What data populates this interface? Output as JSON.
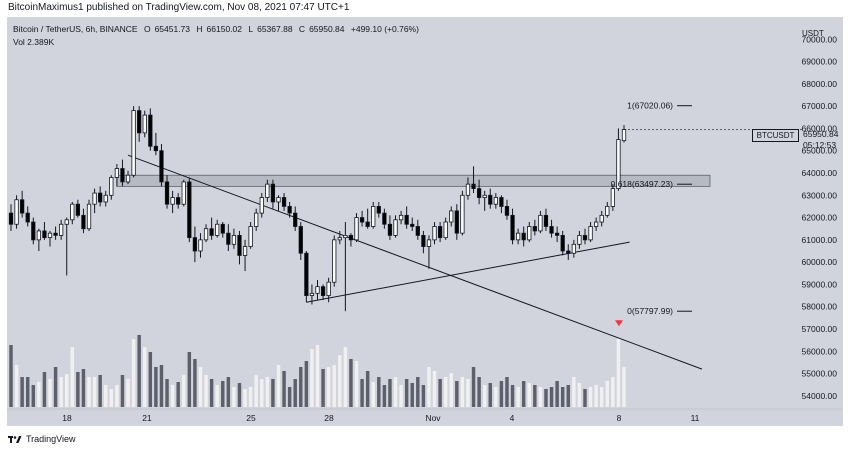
{
  "header": {
    "publish_text": "BitcoinMaximus1 published on TradingView.com, Nov 08, 2021 07:47 UTC+1"
  },
  "legend": {
    "title": "Bitcoin / TetherUS, 6h, BINANCE",
    "o": "65451.73",
    "h": "66150.02",
    "l": "65367.88",
    "c": "65950.84",
    "change": "+499.10 (+0.76%)",
    "vol": "Vol 2.389K"
  },
  "price_axis": {
    "currency": "USDT",
    "ticks": [
      "70000.00",
      "69000.00",
      "68000.00",
      "67000.00",
      "66000.00",
      "65000.00",
      "64000.00",
      "63000.00",
      "62000.00",
      "61000.00",
      "60000.00",
      "59000.00",
      "58000.00",
      "57000.00",
      "56000.00",
      "55000.00",
      "54000.00"
    ]
  },
  "price_badge": {
    "symbol": "BTCUSDT",
    "last": "65950.84",
    "countdown": "05:12:53"
  },
  "fib": [
    {
      "label": "1(67020.06)",
      "price": 67020.06
    },
    {
      "label": "0.618(63497.23)",
      "price": 63497.23
    },
    {
      "label": "0(57797.99)",
      "price": 57797.99
    }
  ],
  "footer": {
    "brand": "TradingView"
  },
  "colors": {
    "background": "#d1d4dc",
    "bull_fill": "#ffffff",
    "bear_fill": "#000000",
    "line": "#131722",
    "zone": "#b2b5be",
    "vol_bull": "#f0f0f0",
    "vol_bear": "#5d606b",
    "arrow": "#f23645"
  },
  "chart_data": {
    "type": "candlestick",
    "title": "Bitcoin / TetherUS, 6h, BINANCE",
    "x_ticks": [
      "18",
      "21",
      "25",
      "28",
      "Nov",
      "4",
      "8",
      "11"
    ],
    "y_range": [
      53500,
      71000
    ],
    "candles": [
      {
        "o": 62200,
        "h": 62600,
        "l": 61400,
        "c": 61700
      },
      {
        "o": 61700,
        "h": 63000,
        "l": 61500,
        "c": 62800
      },
      {
        "o": 62800,
        "h": 63200,
        "l": 62000,
        "c": 62200
      },
      {
        "o": 62200,
        "h": 62500,
        "l": 61600,
        "c": 61800
      },
      {
        "o": 61800,
        "h": 62000,
        "l": 60800,
        "c": 61000
      },
      {
        "o": 61000,
        "h": 61500,
        "l": 60500,
        "c": 61400
      },
      {
        "o": 61400,
        "h": 61800,
        "l": 61000,
        "c": 61100
      },
      {
        "o": 61100,
        "h": 61400,
        "l": 60700,
        "c": 61300
      },
      {
        "o": 61300,
        "h": 61600,
        "l": 61000,
        "c": 61200
      },
      {
        "o": 61200,
        "h": 61900,
        "l": 61000,
        "c": 61700
      },
      {
        "o": 61700,
        "h": 62000,
        "l": 59400,
        "c": 61900
      },
      {
        "o": 61900,
        "h": 62700,
        "l": 61700,
        "c": 62600
      },
      {
        "o": 62600,
        "h": 62800,
        "l": 62000,
        "c": 62100
      },
      {
        "o": 62100,
        "h": 62400,
        "l": 61300,
        "c": 61500
      },
      {
        "o": 61500,
        "h": 62800,
        "l": 61400,
        "c": 62600
      },
      {
        "o": 62600,
        "h": 63300,
        "l": 62200,
        "c": 63100
      },
      {
        "o": 63100,
        "h": 63400,
        "l": 62500,
        "c": 62700
      },
      {
        "o": 62700,
        "h": 63200,
        "l": 62500,
        "c": 63000
      },
      {
        "o": 63000,
        "h": 63900,
        "l": 62800,
        "c": 63800
      },
      {
        "o": 63800,
        "h": 64400,
        "l": 63400,
        "c": 64200
      },
      {
        "o": 64200,
        "h": 64600,
        "l": 63400,
        "c": 63600
      },
      {
        "o": 63600,
        "h": 64100,
        "l": 63500,
        "c": 63900
      },
      {
        "o": 63900,
        "h": 67000,
        "l": 63800,
        "c": 66800
      },
      {
        "o": 66800,
        "h": 67000,
        "l": 65400,
        "c": 65800
      },
      {
        "o": 65800,
        "h": 66800,
        "l": 65600,
        "c": 66600
      },
      {
        "o": 66600,
        "h": 66900,
        "l": 65000,
        "c": 65200
      },
      {
        "o": 65200,
        "h": 65800,
        "l": 64800,
        "c": 65000
      },
      {
        "o": 65000,
        "h": 65300,
        "l": 63400,
        "c": 63600
      },
      {
        "o": 63600,
        "h": 63900,
        "l": 62400,
        "c": 62600
      },
      {
        "o": 62600,
        "h": 63200,
        "l": 62200,
        "c": 62900
      },
      {
        "o": 62900,
        "h": 63100,
        "l": 62400,
        "c": 62600
      },
      {
        "o": 62600,
        "h": 63700,
        "l": 62500,
        "c": 63600
      },
      {
        "o": 63600,
        "h": 63800,
        "l": 60900,
        "c": 61100
      },
      {
        "o": 61100,
        "h": 61600,
        "l": 60000,
        "c": 60500
      },
      {
        "o": 60500,
        "h": 61300,
        "l": 60200,
        "c": 61000
      },
      {
        "o": 61000,
        "h": 61700,
        "l": 60900,
        "c": 61500
      },
      {
        "o": 61500,
        "h": 62000,
        "l": 61000,
        "c": 61200
      },
      {
        "o": 61200,
        "h": 61900,
        "l": 61100,
        "c": 61700
      },
      {
        "o": 61700,
        "h": 61800,
        "l": 61100,
        "c": 61300
      },
      {
        "o": 61300,
        "h": 61700,
        "l": 60500,
        "c": 60800
      },
      {
        "o": 60800,
        "h": 61500,
        "l": 60600,
        "c": 61200
      },
      {
        "o": 61200,
        "h": 61400,
        "l": 59900,
        "c": 60300
      },
      {
        "o": 60300,
        "h": 61000,
        "l": 59600,
        "c": 60700
      },
      {
        "o": 60700,
        "h": 61800,
        "l": 60600,
        "c": 61600
      },
      {
        "o": 61600,
        "h": 62400,
        "l": 61400,
        "c": 62200
      },
      {
        "o": 62200,
        "h": 63100,
        "l": 62000,
        "c": 62900
      },
      {
        "o": 62900,
        "h": 63700,
        "l": 62700,
        "c": 63500
      },
      {
        "o": 63500,
        "h": 63700,
        "l": 62400,
        "c": 62700
      },
      {
        "o": 62700,
        "h": 63000,
        "l": 62300,
        "c": 62900
      },
      {
        "o": 62900,
        "h": 63100,
        "l": 62300,
        "c": 62500
      },
      {
        "o": 62500,
        "h": 62700,
        "l": 62000,
        "c": 62200
      },
      {
        "o": 62200,
        "h": 62500,
        "l": 61400,
        "c": 61600
      },
      {
        "o": 61600,
        "h": 61800,
        "l": 60100,
        "c": 60400
      },
      {
        "o": 60400,
        "h": 60500,
        "l": 58200,
        "c": 58500
      },
      {
        "o": 58500,
        "h": 59000,
        "l": 58100,
        "c": 58600
      },
      {
        "o": 58600,
        "h": 59200,
        "l": 58300,
        "c": 58900
      },
      {
        "o": 58900,
        "h": 59000,
        "l": 58300,
        "c": 58500
      },
      {
        "o": 58500,
        "h": 59300,
        "l": 58200,
        "c": 59100
      },
      {
        "o": 59100,
        "h": 61200,
        "l": 58900,
        "c": 61000
      },
      {
        "o": 61000,
        "h": 61400,
        "l": 60800,
        "c": 61100
      },
      {
        "o": 61100,
        "h": 61800,
        "l": 57800,
        "c": 61200
      },
      {
        "o": 61200,
        "h": 61300,
        "l": 60700,
        "c": 61000
      },
      {
        "o": 61000,
        "h": 62200,
        "l": 60900,
        "c": 62000
      },
      {
        "o": 62000,
        "h": 62300,
        "l": 61600,
        "c": 61800
      },
      {
        "o": 61800,
        "h": 62400,
        "l": 61500,
        "c": 61600
      },
      {
        "o": 61600,
        "h": 62700,
        "l": 61500,
        "c": 62500
      },
      {
        "o": 62500,
        "h": 62700,
        "l": 62000,
        "c": 62200
      },
      {
        "o": 62200,
        "h": 62400,
        "l": 61500,
        "c": 61700
      },
      {
        "o": 61700,
        "h": 62100,
        "l": 61000,
        "c": 61200
      },
      {
        "o": 61200,
        "h": 62100,
        "l": 61100,
        "c": 61900
      },
      {
        "o": 61900,
        "h": 62300,
        "l": 61700,
        "c": 62100
      },
      {
        "o": 62100,
        "h": 62500,
        "l": 61500,
        "c": 61700
      },
      {
        "o": 61700,
        "h": 62000,
        "l": 61400,
        "c": 61600
      },
      {
        "o": 61600,
        "h": 61900,
        "l": 61000,
        "c": 61200
      },
      {
        "o": 61200,
        "h": 61400,
        "l": 60400,
        "c": 60700
      },
      {
        "o": 60700,
        "h": 61200,
        "l": 59700,
        "c": 61000
      },
      {
        "o": 61000,
        "h": 61800,
        "l": 60800,
        "c": 61600
      },
      {
        "o": 61600,
        "h": 61800,
        "l": 60900,
        "c": 61100
      },
      {
        "o": 61100,
        "h": 62000,
        "l": 61000,
        "c": 61800
      },
      {
        "o": 61800,
        "h": 62500,
        "l": 61600,
        "c": 62300
      },
      {
        "o": 62300,
        "h": 62600,
        "l": 61000,
        "c": 61300
      },
      {
        "o": 61300,
        "h": 63200,
        "l": 61200,
        "c": 63000
      },
      {
        "o": 63000,
        "h": 63800,
        "l": 62800,
        "c": 63500
      },
      {
        "o": 63500,
        "h": 64300,
        "l": 63100,
        "c": 63300
      },
      {
        "o": 63300,
        "h": 63700,
        "l": 62600,
        "c": 62900
      },
      {
        "o": 62900,
        "h": 63200,
        "l": 62300,
        "c": 63000
      },
      {
        "o": 63000,
        "h": 63300,
        "l": 62400,
        "c": 62600
      },
      {
        "o": 62600,
        "h": 63100,
        "l": 62400,
        "c": 62900
      },
      {
        "o": 62900,
        "h": 63000,
        "l": 62200,
        "c": 62500
      },
      {
        "o": 62500,
        "h": 62800,
        "l": 61900,
        "c": 62100
      },
      {
        "o": 62100,
        "h": 62400,
        "l": 60800,
        "c": 61000
      },
      {
        "o": 61000,
        "h": 61500,
        "l": 60800,
        "c": 61300
      },
      {
        "o": 61300,
        "h": 61600,
        "l": 60700,
        "c": 61000
      },
      {
        "o": 61000,
        "h": 61800,
        "l": 60900,
        "c": 61600
      },
      {
        "o": 61600,
        "h": 61900,
        "l": 61200,
        "c": 61400
      },
      {
        "o": 61400,
        "h": 62300,
        "l": 61300,
        "c": 62100
      },
      {
        "o": 62100,
        "h": 62400,
        "l": 61400,
        "c": 61600
      },
      {
        "o": 61600,
        "h": 61900,
        "l": 61100,
        "c": 61300
      },
      {
        "o": 61300,
        "h": 61600,
        "l": 60900,
        "c": 61200
      },
      {
        "o": 61200,
        "h": 61400,
        "l": 60300,
        "c": 60500
      },
      {
        "o": 60500,
        "h": 60800,
        "l": 60100,
        "c": 60400
      },
      {
        "o": 60400,
        "h": 61000,
        "l": 60200,
        "c": 60800
      },
      {
        "o": 60800,
        "h": 61400,
        "l": 60600,
        "c": 61200
      },
      {
        "o": 61200,
        "h": 61500,
        "l": 60800,
        "c": 61000
      },
      {
        "o": 61000,
        "h": 61800,
        "l": 60900,
        "c": 61600
      },
      {
        "o": 61600,
        "h": 62000,
        "l": 61400,
        "c": 61800
      },
      {
        "o": 61800,
        "h": 62300,
        "l": 61600,
        "c": 62100
      },
      {
        "o": 62100,
        "h": 62700,
        "l": 62000,
        "c": 62500
      },
      {
        "o": 62500,
        "h": 63500,
        "l": 62300,
        "c": 63300
      },
      {
        "o": 63300,
        "h": 66000,
        "l": 63200,
        "c": 65500
      },
      {
        "o": 65451.73,
        "h": 66150.02,
        "l": 65367.88,
        "c": 65950.84
      }
    ],
    "volume": [
      0.62,
      0.42,
      0.3,
      0.3,
      0.22,
      0.25,
      0.35,
      0.28,
      0.4,
      0.3,
      0.33,
      0.6,
      0.35,
      0.38,
      0.3,
      0.3,
      0.32,
      0.22,
      0.18,
      0.22,
      0.32,
      0.28,
      0.68,
      0.72,
      0.6,
      0.55,
      0.4,
      0.42,
      0.28,
      0.22,
      0.25,
      0.32,
      0.55,
      0.48,
      0.4,
      0.32,
      0.28,
      0.22,
      0.26,
      0.3,
      0.2,
      0.24,
      0.18,
      0.2,
      0.32,
      0.28,
      0.3,
      0.28,
      0.42,
      0.36,
      0.2,
      0.28,
      0.4,
      0.46,
      0.58,
      0.62,
      0.38,
      0.4,
      0.42,
      0.52,
      0.6,
      0.48,
      0.46,
      0.28,
      0.36,
      0.25,
      0.3,
      0.22,
      0.28,
      0.3,
      0.22,
      0.28,
      0.24,
      0.3,
      0.22,
      0.4,
      0.36,
      0.28,
      0.3,
      0.34,
      0.26,
      0.3,
      0.28,
      0.4,
      0.3,
      0.22,
      0.24,
      0.2,
      0.26,
      0.3,
      0.22,
      0.2,
      0.26,
      0.24,
      0.22,
      0.2,
      0.18,
      0.2,
      0.26,
      0.2,
      0.22,
      0.3,
      0.24,
      0.18,
      0.2,
      0.22,
      0.2,
      0.26,
      0.3,
      0.68,
      0.4
    ],
    "trendlines": [
      {
        "name": "descending-resistance",
        "points": [
          [
            64800,
            21
          ],
          [
            62000,
            55
          ],
          [
            59800,
            78
          ],
          [
            57800,
            88
          ],
          [
            56500,
            106
          ],
          [
            55200,
            124
          ]
        ]
      },
      {
        "name": "ascending-support",
        "points": [
          [
            58200,
            53
          ],
          [
            60200,
            100
          ],
          [
            60900,
            111
          ]
        ]
      }
    ],
    "resistance_zone": [
      63400,
      63900
    ]
  }
}
